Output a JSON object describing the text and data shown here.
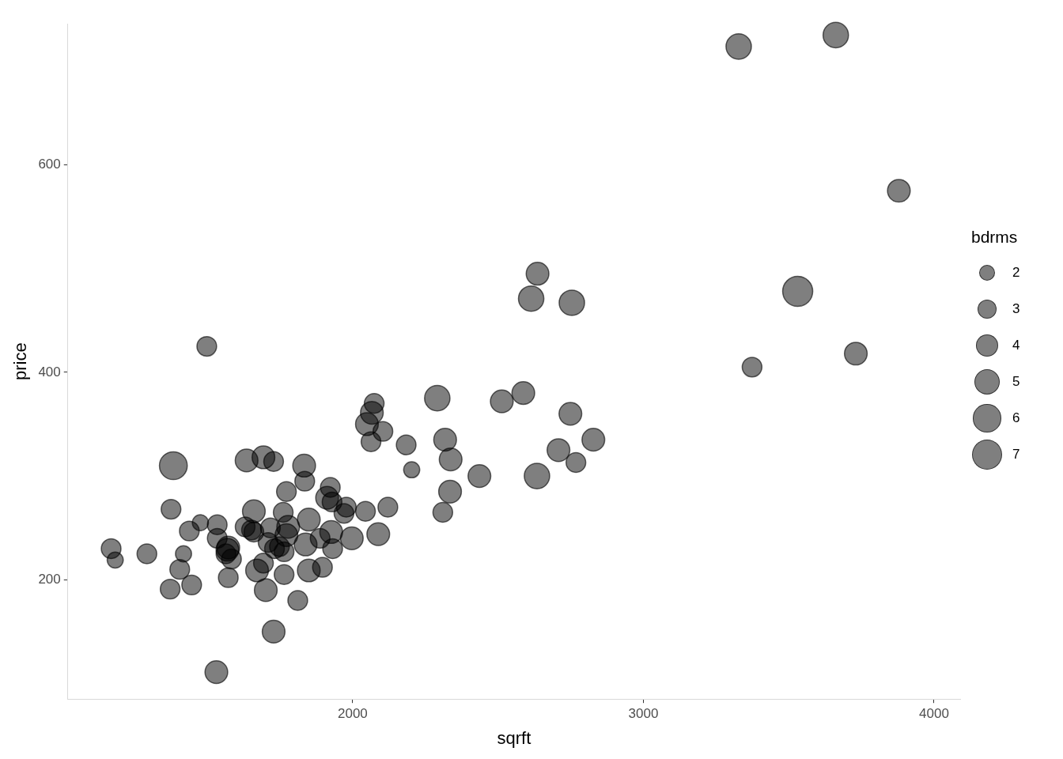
{
  "chart_data": {
    "type": "bubble",
    "xlabel": "sqrft",
    "ylabel": "price",
    "legend_title": "bdrms",
    "grid": false,
    "xlim": [
      1020,
      4090
    ],
    "xticks": [
      2000,
      3000,
      4000
    ],
    "ylim": [
      85,
      736
    ],
    "yticks": [
      200,
      400,
      600
    ],
    "size_legend": [
      2,
      3,
      4,
      5,
      6,
      7
    ],
    "series": [
      {
        "color": "#000000",
        "x": [
          3328,
          3662,
          3879,
          3531,
          3374,
          3731,
          2636,
          2614,
          2754,
          1498,
          2291,
          2513,
          2587,
          2749,
          2828,
          2708,
          2768,
          2634,
          2436,
          2337,
          2318,
          2335,
          2310,
          2203,
          2184,
          2074,
          2066,
          2049,
          2104,
          2063,
          2121,
          2088,
          1997,
          2044,
          1970,
          1978,
          1923,
          1912,
          1929,
          1635,
          1693,
          1728,
          1833,
          1835,
          1772,
          1660,
          1761,
          1849,
          1778,
          1772,
          1717,
          1630,
          1652,
          1660,
          1709,
          1731,
          1764,
          1748,
          1838,
          1888,
          1926,
          1931,
          1671,
          1693,
          1764,
          1849,
          1896,
          1701,
          1811,
          1728,
          1569,
          1383,
          1375,
          1476,
          1438,
          1534,
          1534,
          1572,
          1564,
          1583,
          1572,
          1169,
          1183,
          1292,
          1418,
          1405,
          1372,
          1446,
          1531
        ],
        "values": [
          714,
          725,
          575,
          478,
          405,
          418,
          495,
          471,
          467,
          425,
          375,
          372,
          380,
          360,
          335,
          325,
          313,
          300,
          300,
          316,
          335,
          285,
          265,
          306,
          330,
          370,
          361,
          350,
          343,
          333,
          270,
          244,
          240,
          266,
          264,
          270,
          289,
          279,
          275,
          315,
          318,
          314,
          310,
          295,
          285,
          266,
          265,
          258,
          251,
          243,
          250,
          251,
          248,
          246,
          236,
          230,
          227,
          232,
          234,
          240,
          246,
          230,
          209,
          216,
          205,
          209,
          212,
          190,
          180,
          150,
          229,
          310,
          268,
          255,
          247,
          253,
          240,
          231,
          225,
          220,
          202,
          230,
          219,
          225,
          225,
          210,
          191,
          195,
          111
        ],
        "sizes": [
          5,
          5,
          4,
          7,
          3,
          4,
          4,
          5,
          5,
          3,
          5,
          4,
          4,
          4,
          4,
          4,
          3,
          5,
          4,
          4,
          4,
          4,
          3,
          2,
          3,
          3,
          4,
          4,
          3,
          3,
          3,
          4,
          4,
          3,
          3,
          3,
          3,
          4,
          3,
          4,
          4,
          3,
          4,
          3,
          3,
          4,
          3,
          4,
          4,
          4,
          3,
          3,
          3,
          3,
          3,
          3,
          3,
          3,
          4,
          3,
          4,
          3,
          4,
          3,
          3,
          4,
          3,
          4,
          3,
          4,
          4,
          6,
          3,
          2,
          3,
          3,
          3,
          4,
          3,
          3,
          3,
          3,
          2,
          3,
          2,
          3,
          3,
          3,
          4
        ]
      }
    ]
  }
}
